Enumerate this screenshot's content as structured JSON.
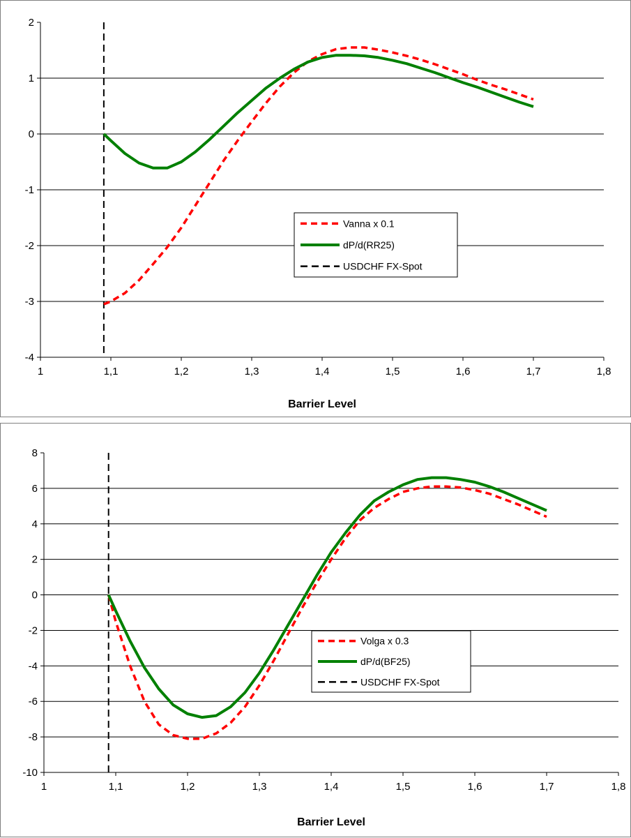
{
  "chart_data": [
    {
      "type": "line",
      "title": "",
      "xlabel": "Barrier Level",
      "ylabel": "",
      "xlim": [
        1,
        1.8
      ],
      "ylim": [
        -4,
        2
      ],
      "xticks": [
        1,
        1.1,
        1.2,
        1.3,
        1.4,
        1.5,
        1.6,
        1.7,
        1.8
      ],
      "xtick_labels": [
        "1",
        "1,1",
        "1,2",
        "1,3",
        "1,4",
        "1,5",
        "1,6",
        "1,7",
        "1,8"
      ],
      "yticks": [
        -4,
        -3,
        -2,
        -1,
        0,
        1,
        2
      ],
      "ytick_labels": [
        "-4",
        "-3",
        "-2",
        "-1",
        "0",
        "1",
        "2"
      ],
      "grid": "horizontal",
      "legend_position": "center",
      "series": [
        {
          "name": "Vanna x 0.1",
          "color": "#ff0000",
          "style": "dashed",
          "x": [
            1.09,
            1.1,
            1.12,
            1.14,
            1.16,
            1.18,
            1.2,
            1.22,
            1.24,
            1.26,
            1.28,
            1.3,
            1.32,
            1.34,
            1.36,
            1.38,
            1.4,
            1.42,
            1.44,
            1.46,
            1.48,
            1.5,
            1.52,
            1.54,
            1.56,
            1.58,
            1.6,
            1.62,
            1.64,
            1.66,
            1.68,
            1.7
          ],
          "values": [
            -3.05,
            -3.0,
            -2.85,
            -2.62,
            -2.33,
            -2.03,
            -1.68,
            -1.28,
            -0.88,
            -0.48,
            -0.12,
            0.22,
            0.55,
            0.85,
            1.1,
            1.3,
            1.43,
            1.52,
            1.55,
            1.55,
            1.51,
            1.46,
            1.4,
            1.33,
            1.25,
            1.16,
            1.07,
            0.97,
            0.88,
            0.8,
            0.71,
            0.62
          ]
        },
        {
          "name": "dP/d(RR25)",
          "color": "#008000",
          "style": "solid",
          "x": [
            1.09,
            1.1,
            1.12,
            1.14,
            1.16,
            1.18,
            1.2,
            1.22,
            1.24,
            1.26,
            1.28,
            1.3,
            1.32,
            1.34,
            1.36,
            1.38,
            1.4,
            1.42,
            1.44,
            1.46,
            1.48,
            1.5,
            1.52,
            1.54,
            1.56,
            1.58,
            1.6,
            1.62,
            1.64,
            1.66,
            1.68,
            1.7
          ],
          "values": [
            0.0,
            -0.12,
            -0.35,
            -0.52,
            -0.61,
            -0.61,
            -0.5,
            -0.32,
            -0.1,
            0.14,
            0.38,
            0.6,
            0.82,
            1.0,
            1.16,
            1.29,
            1.37,
            1.41,
            1.41,
            1.4,
            1.37,
            1.32,
            1.26,
            1.18,
            1.1,
            1.01,
            0.92,
            0.84,
            0.75,
            0.66,
            0.57,
            0.49
          ]
        }
      ],
      "spot_line": {
        "name": "USDCHF FX-Spot",
        "color": "#000000",
        "style": "dashed",
        "x": 1.09
      }
    },
    {
      "type": "line",
      "title": "",
      "xlabel": "Barrier Level",
      "ylabel": "",
      "xlim": [
        1,
        1.8
      ],
      "ylim": [
        -10,
        8
      ],
      "xticks": [
        1,
        1.1,
        1.2,
        1.3,
        1.4,
        1.5,
        1.6,
        1.7,
        1.8
      ],
      "xtick_labels": [
        "1",
        "1,1",
        "1,2",
        "1,3",
        "1,4",
        "1,5",
        "1,6",
        "1,7",
        "1,8"
      ],
      "yticks": [
        -10,
        -8,
        -6,
        -4,
        -2,
        0,
        2,
        4,
        6,
        8
      ],
      "ytick_labels": [
        "-10",
        "-8",
        "-6",
        "-4",
        "-2",
        "0",
        "2",
        "4",
        "6",
        "8"
      ],
      "grid": "horizontal",
      "legend_position": "center",
      "series": [
        {
          "name": "Volga x 0.3",
          "color": "#ff0000",
          "style": "dashed",
          "x": [
            1.09,
            1.1,
            1.12,
            1.14,
            1.16,
            1.18,
            1.2,
            1.22,
            1.24,
            1.26,
            1.28,
            1.3,
            1.32,
            1.34,
            1.36,
            1.38,
            1.4,
            1.42,
            1.44,
            1.46,
            1.48,
            1.5,
            1.52,
            1.54,
            1.56,
            1.58,
            1.6,
            1.62,
            1.64,
            1.66,
            1.68,
            1.7
          ],
          "values": [
            0.0,
            -1.5,
            -4.0,
            -6.0,
            -7.3,
            -7.9,
            -8.1,
            -8.1,
            -7.8,
            -7.2,
            -6.3,
            -5.1,
            -3.7,
            -2.2,
            -0.7,
            0.7,
            2.0,
            3.2,
            4.2,
            4.9,
            5.4,
            5.8,
            6.0,
            6.1,
            6.1,
            6.05,
            5.9,
            5.7,
            5.4,
            5.1,
            4.75,
            4.4
          ]
        },
        {
          "name": "dP/d(BF25)",
          "color": "#008000",
          "style": "solid",
          "x": [
            1.09,
            1.1,
            1.12,
            1.14,
            1.16,
            1.18,
            1.2,
            1.22,
            1.24,
            1.26,
            1.28,
            1.3,
            1.32,
            1.34,
            1.36,
            1.38,
            1.4,
            1.42,
            1.44,
            1.46,
            1.48,
            1.5,
            1.52,
            1.54,
            1.56,
            1.58,
            1.6,
            1.62,
            1.64,
            1.66,
            1.68,
            1.7
          ],
          "values": [
            0.0,
            -0.9,
            -2.6,
            -4.1,
            -5.3,
            -6.2,
            -6.7,
            -6.9,
            -6.8,
            -6.3,
            -5.5,
            -4.4,
            -3.1,
            -1.7,
            -0.3,
            1.1,
            2.4,
            3.5,
            4.5,
            5.3,
            5.8,
            6.2,
            6.5,
            6.6,
            6.6,
            6.5,
            6.35,
            6.1,
            5.8,
            5.45,
            5.1,
            4.75
          ]
        }
      ],
      "spot_line": {
        "name": "USDCHF FX-Spot",
        "color": "#000000",
        "style": "dashed",
        "x": 1.09
      }
    }
  ]
}
